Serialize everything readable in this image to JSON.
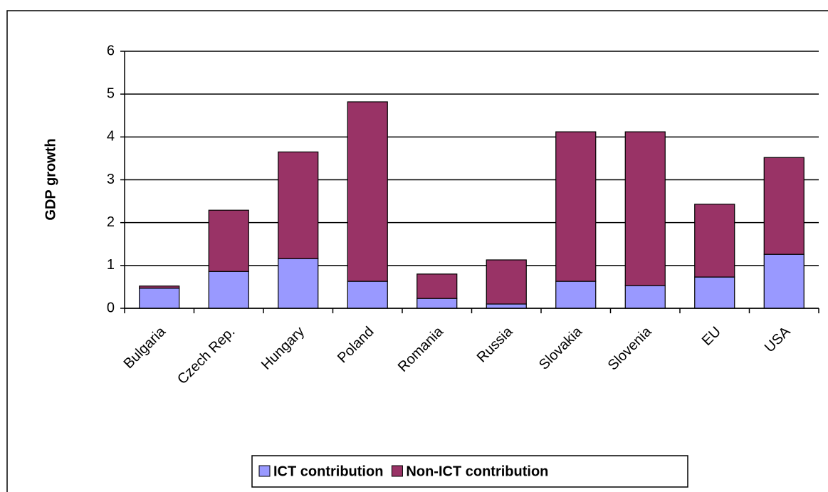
{
  "chart_data": {
    "type": "stacked_bar",
    "ylabel": "GDP growth",
    "categories": [
      "Bulgaria",
      "Czech Rep.",
      "Hungary",
      "Poland",
      "Romania",
      "Russia",
      "Slovakia",
      "Slovenia",
      "EU",
      "USA"
    ],
    "series": [
      {
        "name": "ICT contribution",
        "color": "#9999ff",
        "values": [
          0.47,
          0.86,
          1.16,
          0.63,
          0.23,
          0.1,
          0.63,
          0.53,
          0.73,
          1.26
        ]
      },
      {
        "name": "Non-ICT contribution",
        "color": "#993366",
        "values": [
          0.05,
          1.43,
          2.49,
          4.19,
          0.57,
          1.03,
          3.49,
          3.59,
          1.7,
          2.26
        ]
      }
    ],
    "ylim": [
      0,
      6
    ],
    "yticks": [
      0,
      1,
      2,
      3,
      4,
      5,
      6
    ],
    "grid": true,
    "legend": "bottom"
  }
}
